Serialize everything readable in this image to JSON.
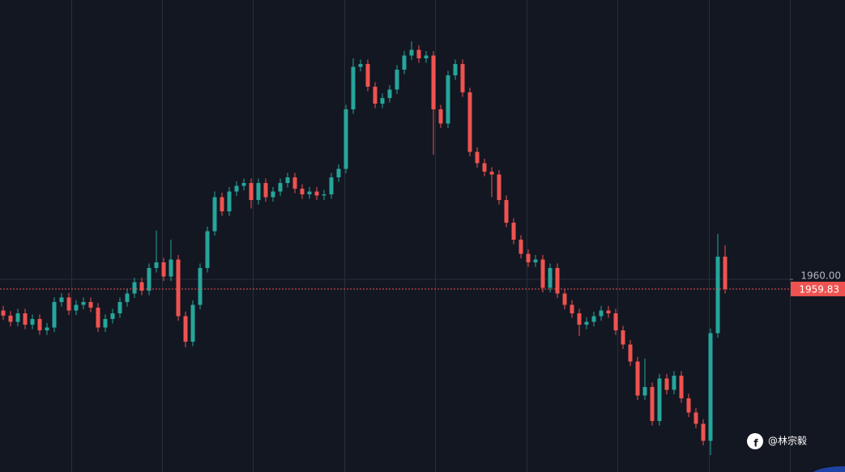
{
  "chart_data": {
    "type": "candlestick",
    "open": [
      1959.45,
      1959.36,
      1959.25,
      1959.4,
      1959.2,
      1959.3,
      1959.1,
      1959.15,
      1959.6,
      1959.68,
      1959.45,
      1959.55,
      1959.6,
      1959.5,
      1959.15,
      1959.3,
      1959.4,
      1959.6,
      1959.75,
      1959.95,
      1959.8,
      1960.2,
      1960.3,
      1960.05,
      1960.35,
      1959.35,
      1958.9,
      1959.55,
      1960.2,
      1960.85,
      1961.45,
      1961.2,
      1961.55,
      1961.65,
      1961.7,
      1961.4,
      1961.7,
      1961.45,
      1961.55,
      1961.7,
      1961.8,
      1961.6,
      1961.5,
      1961.55,
      1961.48,
      1961.5,
      1961.8,
      1961.95,
      1963.0,
      1963.75,
      1963.8,
      1963.4,
      1963.1,
      1963.2,
      1963.35,
      1963.7,
      1963.95,
      1964.05,
      1963.9,
      1963.95,
      1963.0,
      1962.75,
      1963.6,
      1963.8,
      1963.3,
      1962.25,
      1962.05,
      1961.9,
      1961.85,
      1961.4,
      1961.0,
      1960.7,
      1960.45,
      1960.3,
      1960.35,
      1959.85,
      1960.2,
      1959.75,
      1959.55,
      1959.4,
      1959.2,
      1959.25,
      1959.35,
      1959.45,
      1959.4,
      1959.1,
      1958.85,
      1958.55,
      1957.95,
      1958.1,
      1957.5,
      1958.25,
      1958.05,
      1958.3,
      1957.9,
      1957.65,
      1957.45,
      1957.15,
      1959.05,
      1960.4
    ],
    "high": [
      1959.53,
      1959.44,
      1959.48,
      1959.48,
      1959.38,
      1959.38,
      1959.23,
      1959.68,
      1959.76,
      1959.76,
      1959.63,
      1959.68,
      1959.68,
      1959.58,
      1959.38,
      1959.48,
      1959.68,
      1959.83,
      1960.03,
      1960.03,
      1960.28,
      1960.86,
      1960.38,
      1960.7,
      1960.43,
      1959.43,
      1959.63,
      1960.28,
      1960.93,
      1961.55,
      1961.53,
      1961.63,
      1961.73,
      1961.78,
      1961.78,
      1961.78,
      1961.78,
      1961.63,
      1961.78,
      1961.88,
      1961.88,
      1961.68,
      1961.63,
      1961.63,
      1961.58,
      1961.88,
      1962.03,
      1963.08,
      1963.9,
      1963.88,
      1963.88,
      1963.48,
      1963.28,
      1963.43,
      1963.78,
      1964.03,
      1964.2,
      1964.13,
      1964.03,
      1964.03,
      1963.08,
      1963.68,
      1963.88,
      1963.88,
      1963.38,
      1962.33,
      1962.13,
      1961.98,
      1961.93,
      1961.48,
      1961.08,
      1960.78,
      1960.53,
      1960.43,
      1960.43,
      1960.28,
      1960.28,
      1959.83,
      1959.63,
      1959.48,
      1959.33,
      1959.43,
      1959.53,
      1959.53,
      1959.48,
      1959.18,
      1958.93,
      1958.63,
      1958.6,
      1958.18,
      1958.33,
      1958.33,
      1958.38,
      1958.38,
      1957.98,
      1957.73,
      1957.53,
      1959.13,
      1960.8,
      1960.6
    ],
    "low": [
      1959.28,
      1959.17,
      1959.17,
      1959.12,
      1959.12,
      1959.02,
      1959.02,
      1959.07,
      1959.52,
      1959.37,
      1959.37,
      1959.47,
      1959.42,
      1959.07,
      1959.07,
      1959.22,
      1959.32,
      1959.52,
      1959.67,
      1959.72,
      1959.72,
      1960.12,
      1959.97,
      1959.97,
      1959.27,
      1958.8,
      1958.82,
      1959.47,
      1960.12,
      1960.77,
      1961.12,
      1961.12,
      1961.47,
      1961.57,
      1961.25,
      1961.32,
      1961.37,
      1961.37,
      1961.47,
      1961.62,
      1961.52,
      1961.42,
      1961.42,
      1961.4,
      1961.4,
      1961.42,
      1961.72,
      1961.87,
      1962.92,
      1963.67,
      1963.32,
      1963.02,
      1963.02,
      1963.12,
      1963.27,
      1963.62,
      1963.87,
      1963.82,
      1963.82,
      1962.2,
      1962.67,
      1962.67,
      1963.52,
      1963.22,
      1962.17,
      1961.97,
      1961.82,
      1961.45,
      1961.32,
      1960.92,
      1960.62,
      1960.37,
      1960.22,
      1960.22,
      1959.77,
      1959.77,
      1959.67,
      1959.47,
      1959.32,
      1959.0,
      1959.12,
      1959.17,
      1959.27,
      1959.32,
      1959.02,
      1958.77,
      1958.47,
      1957.87,
      1957.87,
      1957.42,
      1957.42,
      1957.97,
      1957.97,
      1957.82,
      1957.57,
      1957.37,
      1957.07,
      1956.9,
      1958.97,
      1959.75
    ],
    "close": [
      1959.36,
      1959.25,
      1959.4,
      1959.2,
      1959.3,
      1959.1,
      1959.15,
      1959.6,
      1959.68,
      1959.45,
      1959.55,
      1959.6,
      1959.5,
      1959.15,
      1959.3,
      1959.4,
      1959.6,
      1959.75,
      1959.95,
      1959.8,
      1960.2,
      1960.3,
      1960.05,
      1960.35,
      1959.35,
      1958.9,
      1959.55,
      1960.2,
      1960.85,
      1961.45,
      1961.2,
      1961.55,
      1961.65,
      1961.7,
      1961.4,
      1961.7,
      1961.45,
      1961.55,
      1961.7,
      1961.8,
      1961.6,
      1961.5,
      1961.55,
      1961.48,
      1961.5,
      1961.8,
      1961.95,
      1963.0,
      1963.75,
      1963.8,
      1963.4,
      1963.1,
      1963.2,
      1963.35,
      1963.7,
      1963.95,
      1964.05,
      1963.9,
      1963.95,
      1963.0,
      1962.75,
      1963.6,
      1963.8,
      1963.3,
      1962.25,
      1962.05,
      1961.9,
      1961.85,
      1961.4,
      1961.0,
      1960.7,
      1960.45,
      1960.3,
      1960.35,
      1959.85,
      1960.2,
      1959.75,
      1959.55,
      1959.4,
      1959.2,
      1959.25,
      1959.35,
      1959.45,
      1959.4,
      1959.1,
      1958.85,
      1958.55,
      1957.95,
      1958.1,
      1957.5,
      1958.25,
      1958.05,
      1958.3,
      1957.9,
      1957.65,
      1957.45,
      1957.15,
      1959.05,
      1960.4,
      1959.83
    ],
    "up_color": "#26a69a",
    "down_color": "#ef5350",
    "ylim": [
      1956.6,
      1964.93
    ],
    "yticks": [
      {
        "value": 1960,
        "label": "1960.00"
      }
    ],
    "grid": true,
    "watermark": "@林宗毅"
  }
}
